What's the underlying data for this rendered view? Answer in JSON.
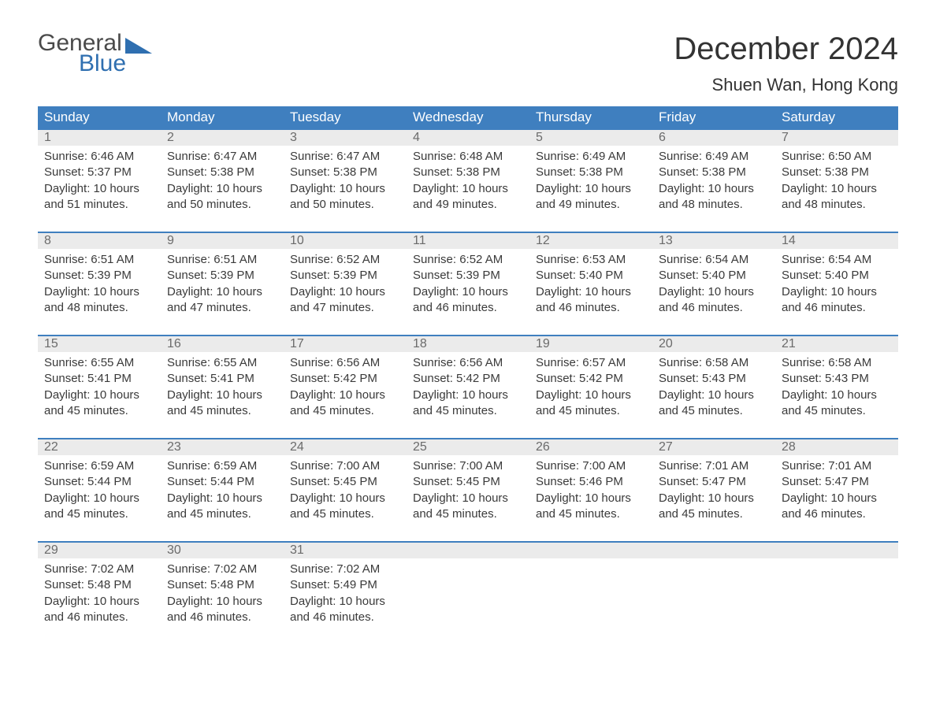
{
  "logo": {
    "top": "General",
    "bottom": "Blue"
  },
  "title": "December 2024",
  "location": "Shuen Wan, Hong Kong",
  "colors": {
    "header_bg": "#3f7fbf",
    "header_text": "#ffffff",
    "daynum_bg": "#ebebeb",
    "daynum_text": "#6b6b6b",
    "body_text": "#3a3a3a",
    "week_border": "#3f7fbf",
    "logo_gray": "#4a4a4a",
    "logo_blue": "#2f6fb0",
    "page_bg": "#ffffff"
  },
  "typography": {
    "title_fontsize": 40,
    "location_fontsize": 22,
    "dow_fontsize": 17,
    "daynum_fontsize": 16,
    "body_fontsize": 15,
    "logo_fontsize": 30
  },
  "days_of_week": [
    "Sunday",
    "Monday",
    "Tuesday",
    "Wednesday",
    "Thursday",
    "Friday",
    "Saturday"
  ],
  "weeks": [
    [
      {
        "num": "1",
        "sunrise": "Sunrise: 6:46 AM",
        "sunset": "Sunset: 5:37 PM",
        "day1": "Daylight: 10 hours",
        "day2": "and 51 minutes."
      },
      {
        "num": "2",
        "sunrise": "Sunrise: 6:47 AM",
        "sunset": "Sunset: 5:38 PM",
        "day1": "Daylight: 10 hours",
        "day2": "and 50 minutes."
      },
      {
        "num": "3",
        "sunrise": "Sunrise: 6:47 AM",
        "sunset": "Sunset: 5:38 PM",
        "day1": "Daylight: 10 hours",
        "day2": "and 50 minutes."
      },
      {
        "num": "4",
        "sunrise": "Sunrise: 6:48 AM",
        "sunset": "Sunset: 5:38 PM",
        "day1": "Daylight: 10 hours",
        "day2": "and 49 minutes."
      },
      {
        "num": "5",
        "sunrise": "Sunrise: 6:49 AM",
        "sunset": "Sunset: 5:38 PM",
        "day1": "Daylight: 10 hours",
        "day2": "and 49 minutes."
      },
      {
        "num": "6",
        "sunrise": "Sunrise: 6:49 AM",
        "sunset": "Sunset: 5:38 PM",
        "day1": "Daylight: 10 hours",
        "day2": "and 48 minutes."
      },
      {
        "num": "7",
        "sunrise": "Sunrise: 6:50 AM",
        "sunset": "Sunset: 5:38 PM",
        "day1": "Daylight: 10 hours",
        "day2": "and 48 minutes."
      }
    ],
    [
      {
        "num": "8",
        "sunrise": "Sunrise: 6:51 AM",
        "sunset": "Sunset: 5:39 PM",
        "day1": "Daylight: 10 hours",
        "day2": "and 48 minutes."
      },
      {
        "num": "9",
        "sunrise": "Sunrise: 6:51 AM",
        "sunset": "Sunset: 5:39 PM",
        "day1": "Daylight: 10 hours",
        "day2": "and 47 minutes."
      },
      {
        "num": "10",
        "sunrise": "Sunrise: 6:52 AM",
        "sunset": "Sunset: 5:39 PM",
        "day1": "Daylight: 10 hours",
        "day2": "and 47 minutes."
      },
      {
        "num": "11",
        "sunrise": "Sunrise: 6:52 AM",
        "sunset": "Sunset: 5:39 PM",
        "day1": "Daylight: 10 hours",
        "day2": "and 46 minutes."
      },
      {
        "num": "12",
        "sunrise": "Sunrise: 6:53 AM",
        "sunset": "Sunset: 5:40 PM",
        "day1": "Daylight: 10 hours",
        "day2": "and 46 minutes."
      },
      {
        "num": "13",
        "sunrise": "Sunrise: 6:54 AM",
        "sunset": "Sunset: 5:40 PM",
        "day1": "Daylight: 10 hours",
        "day2": "and 46 minutes."
      },
      {
        "num": "14",
        "sunrise": "Sunrise: 6:54 AM",
        "sunset": "Sunset: 5:40 PM",
        "day1": "Daylight: 10 hours",
        "day2": "and 46 minutes."
      }
    ],
    [
      {
        "num": "15",
        "sunrise": "Sunrise: 6:55 AM",
        "sunset": "Sunset: 5:41 PM",
        "day1": "Daylight: 10 hours",
        "day2": "and 45 minutes."
      },
      {
        "num": "16",
        "sunrise": "Sunrise: 6:55 AM",
        "sunset": "Sunset: 5:41 PM",
        "day1": "Daylight: 10 hours",
        "day2": "and 45 minutes."
      },
      {
        "num": "17",
        "sunrise": "Sunrise: 6:56 AM",
        "sunset": "Sunset: 5:42 PM",
        "day1": "Daylight: 10 hours",
        "day2": "and 45 minutes."
      },
      {
        "num": "18",
        "sunrise": "Sunrise: 6:56 AM",
        "sunset": "Sunset: 5:42 PM",
        "day1": "Daylight: 10 hours",
        "day2": "and 45 minutes."
      },
      {
        "num": "19",
        "sunrise": "Sunrise: 6:57 AM",
        "sunset": "Sunset: 5:42 PM",
        "day1": "Daylight: 10 hours",
        "day2": "and 45 minutes."
      },
      {
        "num": "20",
        "sunrise": "Sunrise: 6:58 AM",
        "sunset": "Sunset: 5:43 PM",
        "day1": "Daylight: 10 hours",
        "day2": "and 45 minutes."
      },
      {
        "num": "21",
        "sunrise": "Sunrise: 6:58 AM",
        "sunset": "Sunset: 5:43 PM",
        "day1": "Daylight: 10 hours",
        "day2": "and 45 minutes."
      }
    ],
    [
      {
        "num": "22",
        "sunrise": "Sunrise: 6:59 AM",
        "sunset": "Sunset: 5:44 PM",
        "day1": "Daylight: 10 hours",
        "day2": "and 45 minutes."
      },
      {
        "num": "23",
        "sunrise": "Sunrise: 6:59 AM",
        "sunset": "Sunset: 5:44 PM",
        "day1": "Daylight: 10 hours",
        "day2": "and 45 minutes."
      },
      {
        "num": "24",
        "sunrise": "Sunrise: 7:00 AM",
        "sunset": "Sunset: 5:45 PM",
        "day1": "Daylight: 10 hours",
        "day2": "and 45 minutes."
      },
      {
        "num": "25",
        "sunrise": "Sunrise: 7:00 AM",
        "sunset": "Sunset: 5:45 PM",
        "day1": "Daylight: 10 hours",
        "day2": "and 45 minutes."
      },
      {
        "num": "26",
        "sunrise": "Sunrise: 7:00 AM",
        "sunset": "Sunset: 5:46 PM",
        "day1": "Daylight: 10 hours",
        "day2": "and 45 minutes."
      },
      {
        "num": "27",
        "sunrise": "Sunrise: 7:01 AM",
        "sunset": "Sunset: 5:47 PM",
        "day1": "Daylight: 10 hours",
        "day2": "and 45 minutes."
      },
      {
        "num": "28",
        "sunrise": "Sunrise: 7:01 AM",
        "sunset": "Sunset: 5:47 PM",
        "day1": "Daylight: 10 hours",
        "day2": "and 46 minutes."
      }
    ],
    [
      {
        "num": "29",
        "sunrise": "Sunrise: 7:02 AM",
        "sunset": "Sunset: 5:48 PM",
        "day1": "Daylight: 10 hours",
        "day2": "and 46 minutes."
      },
      {
        "num": "30",
        "sunrise": "Sunrise: 7:02 AM",
        "sunset": "Sunset: 5:48 PM",
        "day1": "Daylight: 10 hours",
        "day2": "and 46 minutes."
      },
      {
        "num": "31",
        "sunrise": "Sunrise: 7:02 AM",
        "sunset": "Sunset: 5:49 PM",
        "day1": "Daylight: 10 hours",
        "day2": "and 46 minutes."
      },
      null,
      null,
      null,
      null
    ]
  ]
}
